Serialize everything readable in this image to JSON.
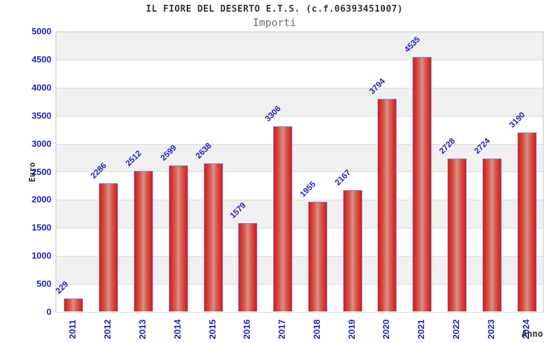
{
  "chart_data": {
    "type": "bar",
    "title": "IL FIORE DEL DESERTO E.T.S. (c.f.06393451007)",
    "subtitle": "Importi",
    "xlabel": "Anno",
    "ylabel": "Euro",
    "categories": [
      "2011",
      "2012",
      "2013",
      "2014",
      "2015",
      "2016",
      "2017",
      "2018",
      "2019",
      "2020",
      "2021",
      "2022",
      "2023",
      "2024"
    ],
    "values": [
      229,
      2286,
      2512,
      2599,
      2638,
      1579,
      3306,
      1955,
      2167,
      3794,
      4535,
      2728,
      2724,
      3190
    ],
    "ylim": [
      0,
      5000
    ],
    "ytick_step": 500,
    "ytick_labels": [
      "0",
      "500",
      "1000",
      "1500",
      "2000",
      "2500",
      "3000",
      "3500",
      "4000",
      "4500",
      "5000"
    ],
    "grid": true,
    "legend": "none",
    "layout_hints": {
      "bands_alternating": true,
      "value_labels_rotation_deg": -45,
      "x_labels_rotation_deg": -90
    },
    "colors": {
      "label_text": "#2222cc",
      "bar_edge": "#6d9eeb",
      "bar_fill_dark": "#e11414",
      "bar_fill_mid": "#d8564a",
      "bar_fill_highlight": "#cf958c",
      "band": "#f0f0f0",
      "gridline": "#dcdcdc",
      "plot_border": "#c6c6c6",
      "title": "#333333",
      "subtitle": "#6e6e6e",
      "axis_title": "#333333"
    }
  }
}
